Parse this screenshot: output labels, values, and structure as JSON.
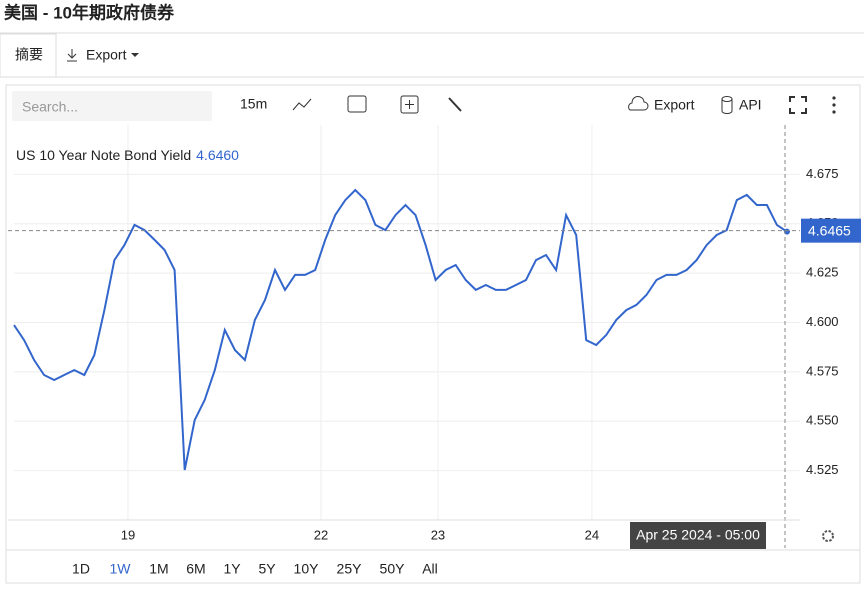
{
  "page": {
    "title": "美国 - 10年期政府债券",
    "tabs": [
      "摘要",
      "Export"
    ],
    "search_placeholder": "Search...",
    "interval": "15m",
    "export": "Export",
    "api": "API",
    "ranges": [
      "1D",
      "1W",
      "1M",
      "6M",
      "1Y",
      "5Y",
      "10Y",
      "25Y",
      "50Y",
      "All"
    ],
    "active_range": 1
  },
  "chart_data": {
    "type": "line",
    "series": [
      {
        "name": "US 10 Year Note Bond Yield",
        "color": "#3366cc",
        "last_value": "4.6460",
        "values": [
          4.5987,
          4.5911,
          4.581,
          4.5734,
          4.5709,
          4.5734,
          4.5759,
          4.5734,
          4.5835,
          4.6063,
          4.6316,
          4.6392,
          4.6494,
          4.6468,
          4.6418,
          4.6367,
          4.6266,
          4.5253,
          4.5506,
          4.5608,
          4.5759,
          4.5962,
          4.5861,
          4.581,
          4.6013,
          4.6114,
          4.6266,
          4.6165,
          4.6241,
          4.6241,
          4.6266,
          4.6418,
          4.6544,
          4.662,
          4.6671,
          4.662,
          4.6494,
          4.6468,
          4.6544,
          4.6595,
          4.6544,
          4.6392,
          4.6215,
          4.6266,
          4.6291,
          4.6215,
          4.6165,
          4.619,
          4.6165,
          4.6165,
          4.619,
          4.6215,
          4.6316,
          4.6342,
          4.6266,
          4.6544,
          4.6443,
          4.5911,
          4.5886,
          4.5937,
          4.6013,
          4.6063,
          4.6089,
          4.6139,
          4.6215,
          4.6241,
          4.6241,
          4.6266,
          4.6316,
          4.6392,
          4.6443,
          4.6468,
          4.662,
          4.6646,
          4.6595,
          4.6595,
          4.6494,
          4.646
        ]
      }
    ],
    "ylim": [
      4.5,
      4.7
    ],
    "yticks": [
      4.525,
      {
        "value": 4.55,
        "label": "4.550"
      },
      4.575,
      {
        "value": 4.6,
        "label": "4.600"
      },
      4.625,
      {
        "value": 4.65,
        "label": "4.650"
      },
      4.675
    ],
    "xlim": [
      -0.6,
      78.3
    ],
    "xticks": [
      {
        "value": 11.35,
        "label": "19"
      },
      {
        "value": 30.58,
        "label": "22"
      },
      {
        "value": 42.23,
        "label": "23"
      },
      {
        "value": 57.57,
        "label": "24"
      }
    ],
    "crosshair_value": 4.6465,
    "crosshair_label": "Apr 25 2024 - 05:00",
    "grid": true
  }
}
